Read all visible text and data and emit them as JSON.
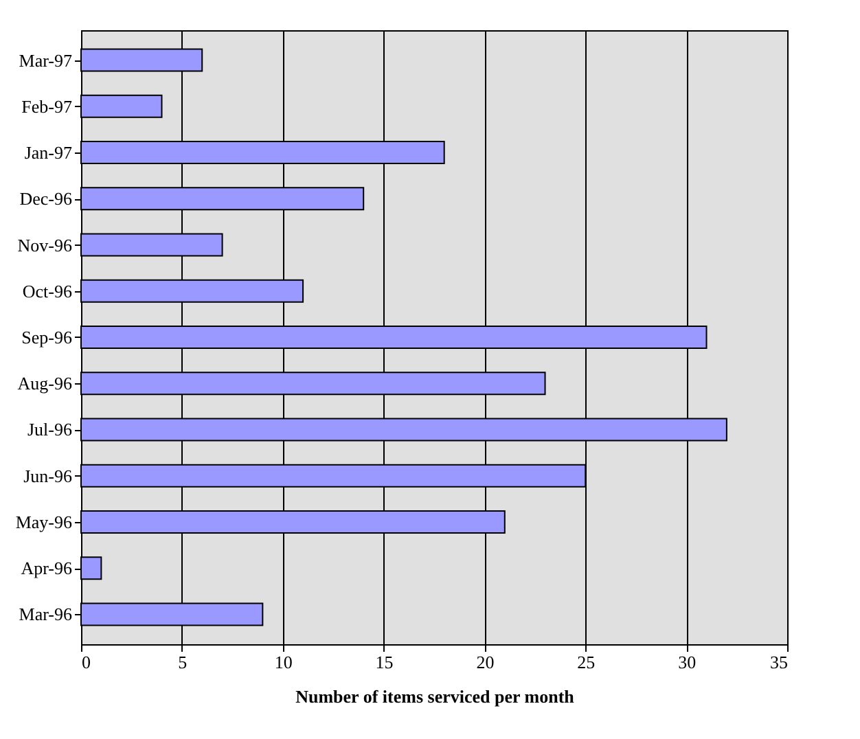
{
  "chart_data": {
    "type": "bar",
    "orientation": "horizontal",
    "xlabel": "Number of items serviced per month",
    "categories": [
      "Mar-97",
      "Feb-97",
      "Jan-97",
      "Dec-96",
      "Nov-96",
      "Oct-96",
      "Sep-96",
      "Aug-96",
      "Jul-96",
      "Jun-96",
      "May-96",
      "Apr-96",
      "Mar-96"
    ],
    "values": [
      6,
      4,
      18,
      14,
      7,
      11,
      31,
      23,
      32,
      25,
      21,
      1,
      9
    ],
    "color": "#9999ff",
    "xlim": [
      0,
      35
    ],
    "xticks": [
      0,
      5,
      10,
      15,
      20,
      25,
      30,
      35
    ],
    "grid": "x"
  }
}
